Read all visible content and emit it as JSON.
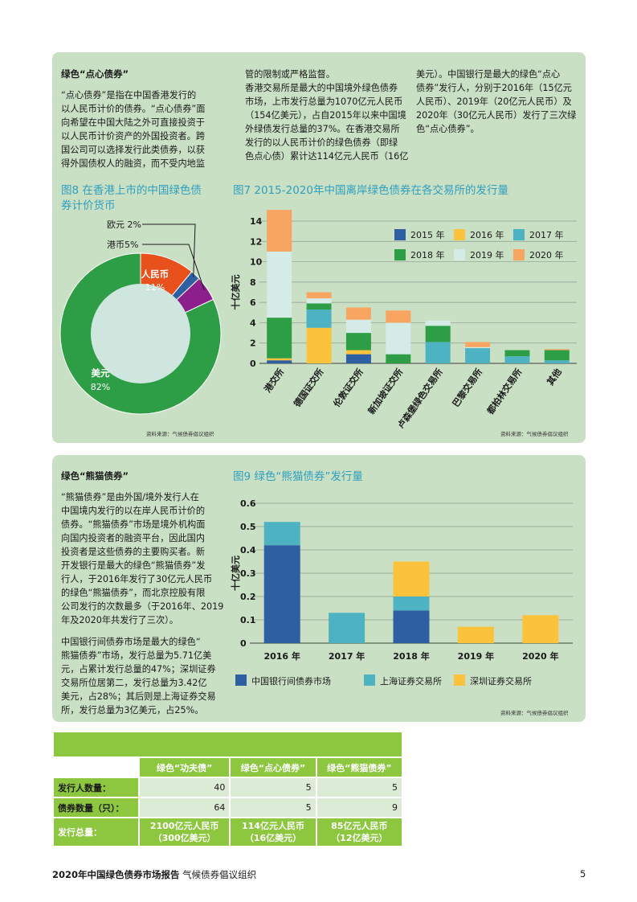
{
  "dim_sum": {
    "heading": "绿色“点心债券”",
    "col1_lines": [
      "“点心债券”是指在中国香港发行的",
      "以人民币计价的债券。“点心债券”面",
      "向希望在中国大陆之外可直接投资于",
      "以人民币计价资产的外国投资者。跨",
      "国公司可以选择发行此类债券，以获",
      "得外国债权人的融资，而不受内地监"
    ],
    "col2_lines": [
      "管的限制或严格监督。",
      "香港交易所是最大的中国境外绿色债券",
      "市场，上市发行总量为1070亿元人民币",
      "（154亿美元），占自2015年以来中国境",
      "外绿债发行总量的37%。在香港交易所",
      "发行的以人民币计价的绿色债券（即绿",
      "色点心债）累计达114亿元人民币（16亿"
    ],
    "col3_lines": [
      "美元）。中国银行是最大的绿色“点心",
      "债券”发行人，分别于2016年（15亿元",
      "人民币）、2019年（20亿元人民币）及",
      "2020年（30亿元人民币）发行了三次绿",
      "色“点心债券”。"
    ]
  },
  "fig8": {
    "title_lines": [
      "图8 在香港上市的中国绿色债",
      "券计价货币"
    ],
    "source": "资料来源：气候债券倡议组织",
    "chart_data": {
      "type": "pie",
      "title": "图8 在香港上市的中国绿色债券计价货币",
      "slices": [
        {
          "name": "人民币",
          "value": 11,
          "label": "11%",
          "color": "#e8501c"
        },
        {
          "name": "欧元",
          "value": 2,
          "label": "2%",
          "color": "#2e5fa3"
        },
        {
          "name": "港币",
          "value": 5,
          "label": "5%",
          "color": "#8c1f8c"
        },
        {
          "name": "美元",
          "value": 82,
          "label": "82%",
          "color": "#2e9e46"
        }
      ]
    }
  },
  "fig7": {
    "title": "图7 2015-2020年中国离岸绿色债券在各交易所的发行量",
    "source": "资料来源：气候债券倡议组织",
    "chart_data": {
      "type": "bar",
      "title": "图7 2015-2020年中国离岸绿色债券在各交易所的发行量",
      "ylabel": "十亿美元",
      "ylim": [
        0,
        14
      ],
      "yticks": [
        0,
        2,
        4,
        6,
        8,
        10,
        12,
        14
      ],
      "categories": [
        "港交所",
        "德国证交所",
        "伦敦证交所",
        "新加坡证交所",
        "卢森堡绿色交易所",
        "巴黎交易所",
        "都柏林交易所",
        "其他"
      ],
      "series": [
        {
          "name": "2015 年",
          "color": "#2e5fa3",
          "values": [
            0.3,
            0,
            0.9,
            0,
            0,
            0,
            0,
            0
          ]
        },
        {
          "name": "2016 年",
          "color": "#fbc33b",
          "values": [
            0.2,
            3.5,
            0.4,
            0,
            0,
            0,
            0,
            0
          ]
        },
        {
          "name": "2017 年",
          "color": "#4db3c2",
          "values": [
            0,
            1.8,
            0,
            0,
            2.1,
            1.5,
            0.7,
            0.3
          ]
        },
        {
          "name": "2018 年",
          "color": "#2e9e46",
          "values": [
            4.0,
            0.6,
            1.7,
            0.9,
            1.6,
            0,
            0.6,
            1.0
          ]
        },
        {
          "name": "2019 年",
          "color": "#d5ebe8",
          "values": [
            6.5,
            0.5,
            1.3,
            3.1,
            0.5,
            0.1,
            0,
            0
          ]
        },
        {
          "name": "2020 年",
          "color": "#f7a561",
          "values": [
            4.1,
            0.6,
            1.2,
            1.2,
            0,
            0.5,
            0,
            0.1
          ]
        }
      ]
    }
  },
  "panda": {
    "heading": "绿色“熊猫债券”",
    "para1_lines": [
      "“熊猫债券”是由外国/境外发行人在",
      "中国境内发行的以在岸人民币计价的",
      "债券。“熊猫债券”市场是境外机构面",
      "向国内投资者的融资平台，因此国内",
      "投资者是这些债券的主要购买者。新",
      "开发银行是最大的绿色“熊猫债券”发",
      "行人，于2016年发行了30亿元人民币",
      "的绿色“熊猫债券”，而北京控股有限",
      "公司发行的次数最多（于2016年、2019",
      "年及2020年共发行了三次）。"
    ],
    "para2_lines": [
      "中国银行间债券市场是最大的绿色“",
      "熊猫债券”市场，发行总量为5.71亿美",
      "元，占累计发行总量的47%；深圳证券",
      "交易所位居第二，发行总量为3.42亿",
      "美元，占28%；其后则是上海证券交易",
      "所，发行总量为3亿美元，占25%。"
    ]
  },
  "fig9": {
    "title": "图9 绿色“熊猫债券”发行量",
    "source": "资料来源：气候债券倡议组织",
    "chart_data": {
      "type": "bar",
      "title": "图9 绿色“熊猫债券”发行量",
      "ylabel": "十亿美元",
      "ylim": [
        0,
        0.6
      ],
      "yticks": [
        0,
        0.1,
        0.2,
        0.3,
        0.4,
        0.5,
        0.6
      ],
      "categories": [
        "2016 年",
        "2017 年",
        "2018 年",
        "2019 年",
        "2020 年"
      ],
      "series": [
        {
          "name": "中国银行间债券市场",
          "color": "#2e5fa3",
          "values": [
            0.42,
            0,
            0.14,
            0,
            0
          ]
        },
        {
          "name": "上海证券交易所",
          "color": "#4db3c2",
          "values": [
            0.1,
            0.13,
            0.06,
            0,
            0
          ]
        },
        {
          "name": "深圳证券交易所",
          "color": "#fbc33b",
          "values": [
            0,
            0,
            0.15,
            0.07,
            0.12
          ]
        }
      ]
    }
  },
  "summary_table": {
    "columns": [
      "绿色“功夫债”",
      "绿色“点心债券”",
      "绿色“熊猫债券”"
    ],
    "rows": [
      {
        "label": "发行人数量：",
        "values": [
          "40",
          "5",
          "5"
        ]
      },
      {
        "label": "债券数量（只）：",
        "values": [
          "64",
          "5",
          "9"
        ]
      }
    ],
    "total_label": "发行总量：",
    "totals": [
      {
        "line1": "2100亿元人民币",
        "line2": "（300亿美元）"
      },
      {
        "line1": "114亿元人民币",
        "line2": "（16亿美元）"
      },
      {
        "line1": "85亿元人民币",
        "line2": "（12亿美元）"
      }
    ]
  },
  "footer": {
    "title": "2020年中国绿色债券市场报告",
    "org": "气候债券倡议组织",
    "page": "5"
  }
}
